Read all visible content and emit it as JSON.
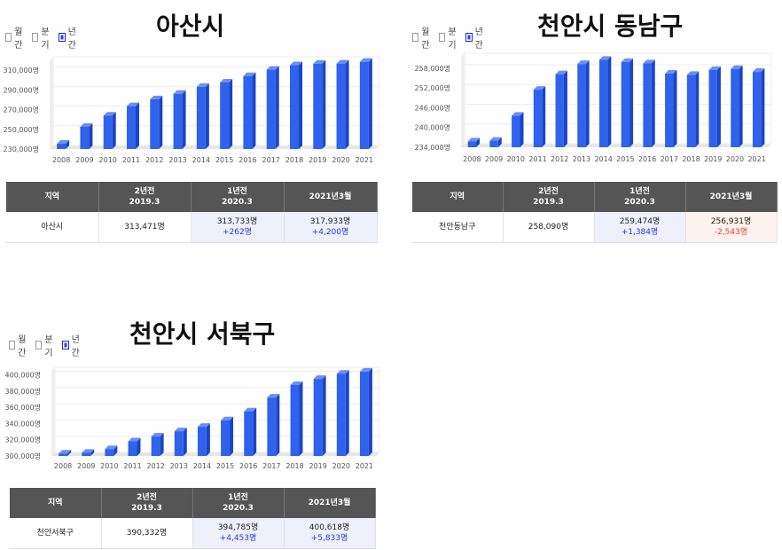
{
  "options": {
    "monthly": "월간",
    "quarterly": "분기",
    "yearly": "년간"
  },
  "table_headers": {
    "region": "지역",
    "two_years_ago": "2년전",
    "two_years_ago_date": "2019.3",
    "one_year_ago": "1년전",
    "one_year_ago_date": "2020.3",
    "current": "2021년3월"
  },
  "panels": [
    {
      "title": "아산시",
      "chart_data": {
        "type": "bar",
        "categories": [
          "2008",
          "2009",
          "2010",
          "2011",
          "2012",
          "2013",
          "2014",
          "2015",
          "2016",
          "2017",
          "2018",
          "2019",
          "2020",
          "2021"
        ],
        "values": [
          235500,
          252500,
          264000,
          273500,
          280500,
          286000,
          293000,
          297500,
          304000,
          310500,
          315000,
          316500,
          316700,
          318500
        ],
        "ylim": [
          230000,
          320000
        ],
        "yticks": [
          230000,
          250000,
          270000,
          290000,
          310000
        ],
        "ytick_labels": [
          "230,000명",
          "250,000명",
          "270,000명",
          "290,000명",
          "310,000명"
        ],
        "color": "#2f63ee"
      },
      "row": {
        "region": "아산시",
        "two_years_ago": "313,471명",
        "one_year_ago": "313,733명",
        "one_year_ago_change": "+262명",
        "current": "317,933명",
        "current_change": "+4,200명"
      }
    },
    {
      "title": "천안시 동남구",
      "chart_data": {
        "type": "bar",
        "categories": [
          "2008",
          "2009",
          "2010",
          "2011",
          "2012",
          "2013",
          "2014",
          "2015",
          "2016",
          "2017",
          "2018",
          "2019",
          "2020",
          "2021"
        ],
        "values": [
          235800,
          236000,
          243600,
          251500,
          256200,
          259300,
          260600,
          259900,
          259500,
          256400,
          256000,
          257500,
          257800,
          256900
        ],
        "ylim": [
          234000,
          261500
        ],
        "yticks": [
          234000,
          240000,
          246000,
          252000,
          258000
        ],
        "ytick_labels": [
          "234,000명",
          "240,000명",
          "246,000명",
          "252,000명",
          "258,000명"
        ],
        "color": "#2f63ee"
      },
      "row": {
        "region": "천안동남구",
        "two_years_ago": "258,090명",
        "one_year_ago": "259,474명",
        "one_year_ago_change": "+1,384명",
        "current": "256,931명",
        "current_change": "-2,543명"
      }
    },
    {
      "title": "천안시 서북구",
      "chart_data": {
        "type": "bar",
        "categories": [
          "2008",
          "2009",
          "2010",
          "2011",
          "2012",
          "2013",
          "2014",
          "2015",
          "2016",
          "2017",
          "2018",
          "2019",
          "2020",
          "2021"
        ],
        "values": [
          303000,
          304000,
          308500,
          318000,
          324000,
          330500,
          336000,
          344000,
          355000,
          372000,
          387500,
          395000,
          401500,
          404000
        ],
        "ylim": [
          300000,
          405000
        ],
        "yticks": [
          300000,
          320000,
          340000,
          360000,
          380000,
          400000
        ],
        "ytick_labels": [
          "300,000명",
          "320,000명",
          "340,000명",
          "360,000명",
          "380,000명",
          "400,000명"
        ],
        "color": "#2f63ee"
      },
      "row": {
        "region": "천안서북구",
        "two_years_ago": "390,332명",
        "one_year_ago": "394,785명",
        "one_year_ago_change": "+4,453명",
        "current": "400,618명",
        "current_change": "+5,833명"
      }
    }
  ]
}
